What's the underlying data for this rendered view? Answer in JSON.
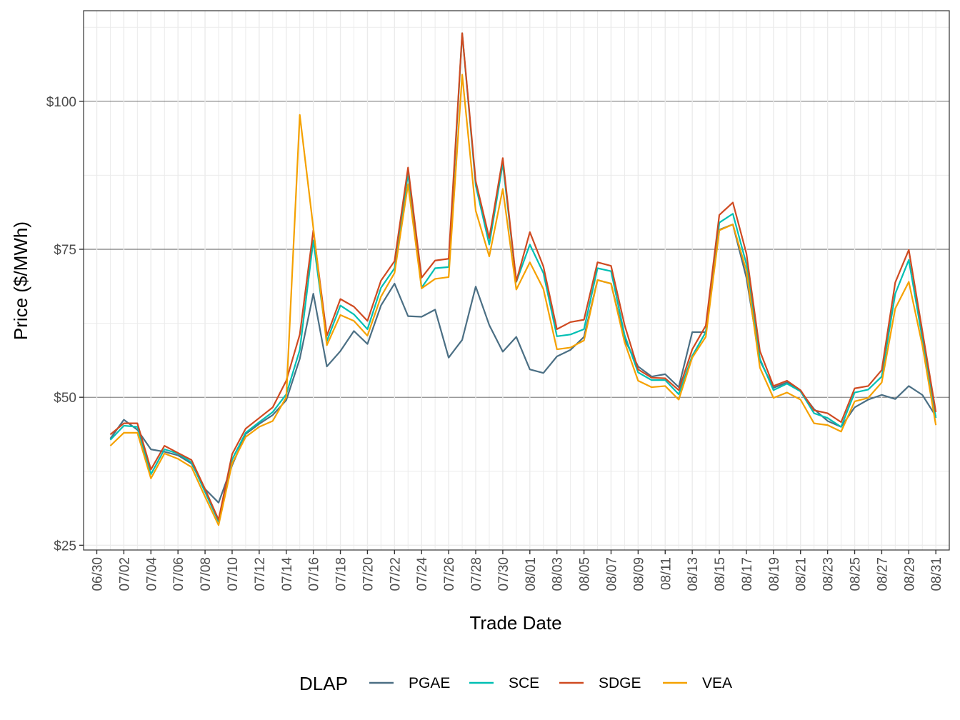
{
  "chart_data": {
    "type": "line",
    "xlabel": "Trade Date",
    "ylabel": "Price ($/MWh)",
    "ylim": [
      24.2,
      115.3
    ],
    "y_ticks": [
      25,
      50,
      75,
      100
    ],
    "y_tick_labels": [
      "$25",
      "$50",
      "$75",
      "$100"
    ],
    "x_tick_labels": [
      "06/30",
      "07/02",
      "07/04",
      "07/06",
      "07/08",
      "07/10",
      "07/12",
      "07/14",
      "07/16",
      "07/18",
      "07/20",
      "07/22",
      "07/24",
      "07/26",
      "07/28",
      "07/30",
      "08/01",
      "08/03",
      "08/05",
      "08/07",
      "08/09",
      "08/11",
      "08/13",
      "08/15",
      "08/17",
      "08/19",
      "08/21",
      "08/23",
      "08/25",
      "08/27",
      "08/29",
      "08/31"
    ],
    "grid": true,
    "legend": {
      "title": "DLAP",
      "position": "bottom"
    },
    "x": [
      "07/01",
      "07/02",
      "07/03",
      "07/04",
      "07/05",
      "07/06",
      "07/07",
      "07/08",
      "07/09",
      "07/10",
      "07/11",
      "07/12",
      "07/13",
      "07/14",
      "07/15",
      "07/16",
      "07/17",
      "07/18",
      "07/19",
      "07/20",
      "07/21",
      "07/22",
      "07/23",
      "07/24",
      "07/25",
      "07/26",
      "07/27",
      "07/28",
      "07/29",
      "07/30",
      "07/31",
      "08/01",
      "08/02",
      "08/03",
      "08/04",
      "08/05",
      "08/06",
      "08/07",
      "08/08",
      "08/09",
      "08/10",
      "08/11",
      "08/12",
      "08/13",
      "08/14",
      "08/15",
      "08/16",
      "08/17",
      "08/18",
      "08/19",
      "08/20",
      "08/21",
      "08/22",
      "08/23",
      "08/24",
      "08/25",
      "08/26",
      "08/27",
      "08/28",
      "08/29",
      "08/30",
      "08/31"
    ],
    "series": [
      {
        "name": "PGAE",
        "color": "#4b6f84",
        "values": [
          43.0,
          46.2,
          44.5,
          41.2,
          40.8,
          40.2,
          38.8,
          34.5,
          32.2,
          38.5,
          43.8,
          45.5,
          47.0,
          49.5,
          56.5,
          67.5,
          55.2,
          57.8,
          61.2,
          59.0,
          65.5,
          69.2,
          63.7,
          63.6,
          64.8,
          56.7,
          59.7,
          68.7,
          62.2,
          57.7,
          60.2,
          54.7,
          54.1,
          56.9,
          58.0,
          60.2,
          69.8,
          69.2,
          59.8,
          55.2,
          53.5,
          53.9,
          51.7,
          61.0,
          61.0,
          78.3,
          79.2,
          70.2,
          56.2,
          51.6,
          52.5,
          51.0,
          48.0,
          46.0,
          45.0,
          48.3,
          49.6,
          50.4,
          49.7,
          51.9,
          50.4,
          46.8
        ]
      },
      {
        "name": "SCE",
        "color": "#00bfb3",
        "values": [
          42.8,
          45.2,
          45.0,
          37.0,
          41.2,
          40.5,
          39.0,
          34.0,
          29.0,
          39.5,
          44.0,
          45.8,
          47.5,
          50.5,
          58.0,
          76.5,
          59.5,
          65.5,
          64.0,
          61.5,
          68.5,
          71.8,
          87.8,
          68.5,
          71.8,
          72.0,
          111.5,
          85.8,
          75.8,
          89.5,
          69.5,
          75.8,
          71.0,
          60.3,
          60.6,
          61.5,
          71.8,
          71.3,
          60.5,
          54.2,
          52.9,
          52.9,
          50.5,
          57.0,
          61.0,
          79.5,
          81.0,
          72.5,
          56.5,
          51.2,
          52.3,
          51.0,
          47.3,
          46.5,
          45.0,
          50.8,
          51.3,
          53.5,
          67.5,
          73.2,
          60.0,
          46.5
        ]
      },
      {
        "name": "SDGE",
        "color": "#cf4a21",
        "values": [
          43.7,
          45.6,
          45.6,
          37.8,
          41.8,
          40.6,
          39.4,
          34.5,
          29.3,
          40.4,
          44.7,
          46.5,
          48.3,
          52.8,
          60.6,
          78.2,
          60.4,
          66.6,
          65.3,
          62.9,
          69.7,
          73.0,
          88.8,
          70.2,
          73.1,
          73.4,
          111.5,
          86.5,
          76.9,
          90.4,
          69.6,
          77.9,
          72.1,
          61.5,
          62.7,
          63.1,
          72.8,
          72.2,
          62.2,
          54.7,
          53.3,
          53.2,
          51.2,
          58.1,
          62.1,
          80.8,
          82.9,
          74.3,
          57.8,
          51.9,
          52.8,
          51.2,
          47.8,
          47.3,
          45.8,
          51.5,
          51.9,
          54.6,
          69.4,
          74.9,
          61.2,
          47.5
        ]
      },
      {
        "name": "VEA",
        "color": "#f5a100",
        "values": [
          41.8,
          44.0,
          44.0,
          36.3,
          40.5,
          39.6,
          38.2,
          33.2,
          28.4,
          38.8,
          43.3,
          45.0,
          46.0,
          50.0,
          97.7,
          78.6,
          58.8,
          63.9,
          62.9,
          60.4,
          67.0,
          71.0,
          86.0,
          68.4,
          70.0,
          70.3,
          104.5,
          81.5,
          73.8,
          85.2,
          68.2,
          72.8,
          68.3,
          58.1,
          58.4,
          59.6,
          69.8,
          69.2,
          59.3,
          52.8,
          51.7,
          51.9,
          49.6,
          56.7,
          60.2,
          78.2,
          79.2,
          71.4,
          55.0,
          49.9,
          50.8,
          49.6,
          45.6,
          45.3,
          44.2,
          49.3,
          49.9,
          52.5,
          65.0,
          69.5,
          58.8,
          45.3
        ]
      }
    ]
  }
}
